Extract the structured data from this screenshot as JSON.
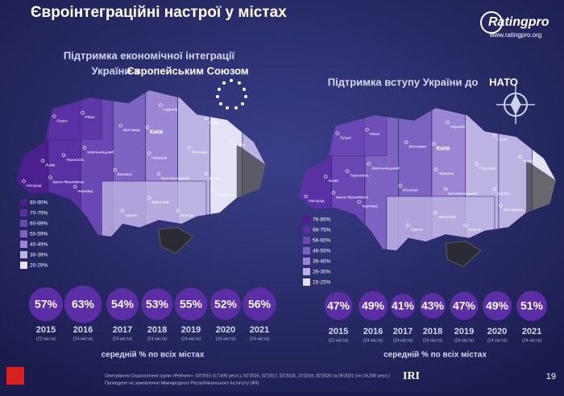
{
  "header": {
    "title": "Євроінтеграційні настрої у містах",
    "logo": "Ratingpro",
    "url": "www.ratingpro.org"
  },
  "cities": [
    "Луцьк",
    "Рівне",
    "Житомир",
    "Київ",
    "Чернігів",
    "Суми",
    "Харків",
    "Полтава",
    "Черкаси",
    "Вінниця",
    "Хмельницький",
    "Тернопіль",
    "Львів",
    "Івано-Франківськ",
    "Ужгород",
    "Чернівці",
    "Кропивницький",
    "Дніпро",
    "Запоріжжя",
    "Миколаїв",
    "Херсон",
    "Одеса"
  ],
  "panels": [
    {
      "title_lines": [
        "Підтримка економічної інтеграції",
        "України з",
        "Європейським Союзом"
      ],
      "legend": [
        "80-90%",
        "70-79%",
        "60-69%",
        "50-59%",
        "40-49%",
        "30-39%",
        "20-29%"
      ],
      "years": [
        "2015",
        "2016",
        "2017",
        "2018",
        "2019",
        "2020",
        "2021"
      ],
      "notes": [
        "(22 міста)",
        "(24 міста)",
        "(24 міста)",
        "(24 міста)",
        "(24 міста)",
        "(24 міста)",
        "(24 міста)"
      ],
      "values": [
        57,
        63,
        54,
        53,
        55,
        52,
        56
      ],
      "value_labels": [
        "57%",
        "63%",
        "54%",
        "53%",
        "55%",
        "52%",
        "56%"
      ],
      "caption": "середній % по всіх містах"
    },
    {
      "title_lines": [
        "Підтримка вступу України до",
        "НАТО"
      ],
      "legend": [
        "76-85%",
        "66-75%",
        "56-65%",
        "46-55%",
        "36-45%",
        "26-35%",
        "15-25%"
      ],
      "years": [
        "2015",
        "2016",
        "2017",
        "2018",
        "2019",
        "2020",
        "2021"
      ],
      "notes": [
        "(22 міста)",
        "(24 міста)",
        "(24 міста)",
        "(24 міста)",
        "(24 міста)",
        "(24 міста)",
        "(24 міста)"
      ],
      "values": [
        47,
        49,
        41,
        43,
        47,
        49,
        51
      ],
      "value_labels": [
        "47%",
        "49%",
        "41%",
        "43%",
        "47%",
        "49%",
        "51%"
      ],
      "caption": "середній % по всіх містах"
    }
  ],
  "footer": {
    "line1": "Опитування Соціологічної групи «Рейтинг»: 03'2015 (17,600 респ.), 02'2016, 02'2017, 02'2018, 10'2019, 02'2020 та 05'2021 (по 19,200 респ.)",
    "line2": "Проведене на замовлення Міжнародного Республіканського Інституту (IRI)",
    "iri": "IRI",
    "page": "19"
  }
}
